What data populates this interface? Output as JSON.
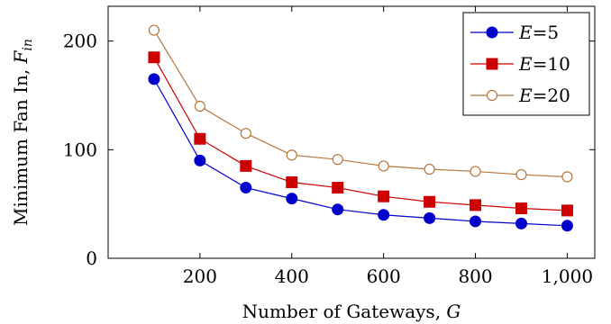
{
  "chart_data": {
    "type": "line",
    "xlabel": "Number of Gateways, G",
    "ylabel": "Minimum Fan In, F_in",
    "x": [
      100,
      200,
      300,
      400,
      500,
      600,
      700,
      800,
      900,
      1000
    ],
    "xlim": [
      0,
      1060
    ],
    "ylim": [
      0,
      232
    ],
    "xticks": [
      200,
      400,
      600,
      800,
      1000
    ],
    "xtick_labels": [
      "200",
      "400",
      "600",
      "800",
      "1,000"
    ],
    "yticks": [
      0,
      100,
      200
    ],
    "ytick_labels": [
      "0",
      "100",
      "200"
    ],
    "grid": false,
    "legend": "top-right",
    "series": [
      {
        "name": "E=5",
        "var": "E",
        "eq": "=5",
        "color": "#0000cc",
        "marker": "filled-circle",
        "values": [
          165,
          90,
          65,
          55,
          45,
          40,
          37,
          34,
          32,
          30
        ]
      },
      {
        "name": "E=10",
        "var": "E",
        "eq": "=10",
        "color": "#cc0000",
        "marker": "filled-square",
        "values": [
          185,
          110,
          85,
          70,
          65,
          57,
          52,
          49,
          46,
          44
        ]
      },
      {
        "name": "E=20",
        "var": "E",
        "eq": "=20",
        "color": "#b5763a",
        "marker": "open-circle",
        "values": [
          210,
          140,
          115,
          95,
          91,
          85,
          82,
          80,
          77,
          75
        ]
      }
    ]
  }
}
